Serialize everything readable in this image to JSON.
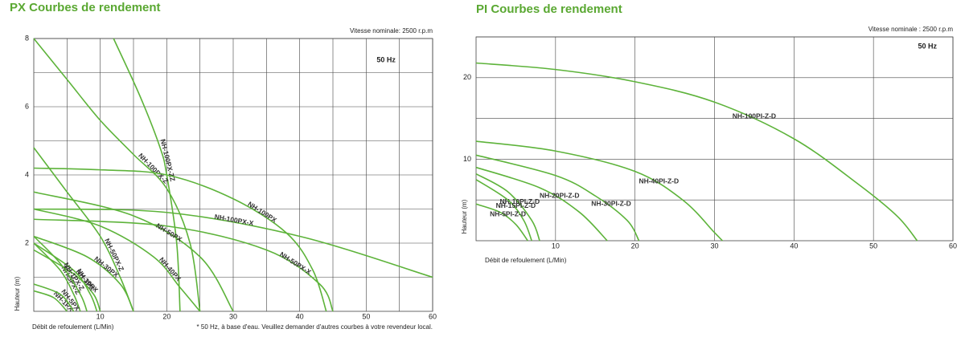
{
  "chart_data": [
    {
      "type": "line",
      "title": "PX Courbes de rendement",
      "subtitle": "Vitesse nominale: 2500 r.p.m",
      "annotation": "50 Hz",
      "footnote": "* 50 Hz, à base d'eau. Veuillez demander d'autres courbes à votre revendeur local.",
      "x_label": "Débit de refoulement (L/Min)",
      "y_label": "Hauteur (m)",
      "xlim": [
        0,
        60
      ],
      "ylim": [
        0,
        8
      ],
      "xticks": [
        10,
        20,
        30,
        40,
        50,
        60
      ],
      "yticks": [
        2,
        4,
        6,
        8
      ],
      "xgrid": [
        5,
        10,
        15,
        20,
        25,
        30,
        35,
        40,
        45,
        50,
        55,
        60
      ],
      "ygrid": [
        1,
        2,
        3,
        4,
        5,
        6,
        7,
        8
      ],
      "series": [
        {
          "name": "NH-100PX-ZZ",
          "color": "#5db33a",
          "x": [
            12,
            16,
            19,
            20,
            21.5,
            22
          ],
          "values": [
            8,
            6.3,
            4.8,
            4,
            2,
            0
          ]
        },
        {
          "name": "NH-100PX-Z",
          "color": "#5db33a",
          "x": [
            0,
            5,
            10,
            15,
            20,
            23.5,
            25
          ],
          "values": [
            8,
            6.8,
            5.6,
            4.6,
            3.6,
            2,
            0
          ]
        },
        {
          "name": "NH-50PX-Z",
          "color": "#5db33a",
          "x": [
            0,
            5,
            10,
            13,
            15
          ],
          "values": [
            4.8,
            3.5,
            2.2,
            1,
            0
          ]
        },
        {
          "name": "NH-100PX",
          "color": "#5db33a",
          "x": [
            0,
            10,
            20,
            30,
            38,
            42,
            44
          ],
          "values": [
            4.2,
            4.15,
            4,
            3.3,
            2.3,
            1.2,
            0
          ]
        },
        {
          "name": "NH-100PX-X",
          "color": "#5db33a",
          "x": [
            0,
            20,
            40,
            60
          ],
          "values": [
            3,
            2.9,
            2.2,
            1
          ]
        },
        {
          "name": "NH-50PX-X",
          "color": "#5db33a",
          "x": [
            0,
            20,
            35,
            43,
            45
          ],
          "values": [
            2.7,
            2.5,
            1.8,
            0.8,
            0
          ]
        },
        {
          "name": "NH-50PX",
          "color": "#5db33a",
          "x": [
            0,
            15,
            25,
            30
          ],
          "values": [
            3.5,
            2.8,
            1.6,
            0
          ]
        },
        {
          "name": "NH-40PX",
          "color": "#5db33a",
          "x": [
            0,
            10,
            18,
            22,
            25
          ],
          "values": [
            3,
            2.5,
            1.6,
            0.7,
            0
          ]
        },
        {
          "name": "NH-30PX",
          "color": "#5db33a",
          "x": [
            0,
            8,
            13,
            15
          ],
          "values": [
            2.2,
            1.6,
            0.8,
            0
          ]
        },
        {
          "name": "NH-10PX",
          "color": "#5db33a",
          "x": [
            0,
            6,
            9,
            10
          ],
          "values": [
            1.8,
            1.1,
            0.5,
            0
          ]
        },
        {
          "name": "NH-3PX",
          "color": "#5db33a",
          "x": [
            0,
            6,
            8.5,
            9.5
          ],
          "values": [
            2,
            1.2,
            0.5,
            0
          ]
        },
        {
          "name": "NH-5PX-Z",
          "color": "#5db33a",
          "x": [
            0,
            4,
            6,
            7
          ],
          "values": [
            2,
            1.2,
            0.5,
            0
          ]
        },
        {
          "name": "NH-1PX-Z",
          "color": "#5db33a",
          "x": [
            0,
            4,
            7,
            8
          ],
          "values": [
            2.2,
            1.4,
            0.5,
            0
          ]
        },
        {
          "name": "NH-1PX",
          "color": "#5db33a",
          "x": [
            0,
            3,
            5
          ],
          "values": [
            0.6,
            0.4,
            0
          ]
        },
        {
          "name": "NH-5PX",
          "color": "#5db33a",
          "x": [
            0,
            4,
            6
          ],
          "values": [
            0.8,
            0.5,
            0
          ]
        }
      ]
    },
    {
      "type": "line",
      "title": "PI Courbes de rendement",
      "subtitle": "Vitesse nominale : 2500 r.p.m",
      "annotation": "50 Hz",
      "x_label": "Débit de refoulement (L/Min)",
      "y_label": "Hauteur (m)",
      "xlim": [
        0,
        60
      ],
      "ylim": [
        0,
        25
      ],
      "xticks": [
        10,
        20,
        30,
        40,
        50,
        60
      ],
      "yticks": [
        10,
        20
      ],
      "xgrid": [
        10,
        20,
        30,
        40,
        50,
        60
      ],
      "ygrid": [
        5,
        10,
        15,
        20,
        25
      ],
      "series": [
        {
          "name": "NH-100PI-Z-D",
          "color": "#5db33a",
          "x": [
            0,
            10,
            20,
            30,
            40,
            48,
            53,
            55.5
          ],
          "values": [
            21.8,
            21,
            19.5,
            17,
            12.5,
            7,
            3,
            0
          ]
        },
        {
          "name": "NH-40PI-Z-D",
          "color": "#5db33a",
          "x": [
            0,
            10,
            20,
            26,
            30,
            31
          ],
          "values": [
            12.2,
            11,
            8.5,
            5,
            1,
            0
          ]
        },
        {
          "name": "NH-30PI-Z-D",
          "color": "#5db33a",
          "x": [
            0,
            10,
            15,
            19,
            20.5
          ],
          "values": [
            10.5,
            8,
            5.5,
            2.5,
            0
          ]
        },
        {
          "name": "NH-20PI-Z-D",
          "color": "#5db33a",
          "x": [
            0,
            8,
            13,
            16.5
          ],
          "values": [
            9,
            6.5,
            3.5,
            0
          ]
        },
        {
          "name": "NH-10PI-Z-D",
          "color": "#5db33a",
          "x": [
            0,
            4,
            7,
            8
          ],
          "values": [
            8.2,
            6,
            2.5,
            0
          ]
        },
        {
          "name": "NH-15PI-Z-D",
          "color": "#5db33a",
          "x": [
            0,
            4,
            6,
            7
          ],
          "values": [
            7.5,
            5,
            2.5,
            0
          ]
        },
        {
          "name": "NH-5PI-Z-D",
          "color": "#5db33a",
          "x": [
            0,
            3,
            5,
            6.5
          ],
          "values": [
            4.5,
            3.5,
            2,
            0
          ]
        }
      ]
    }
  ]
}
